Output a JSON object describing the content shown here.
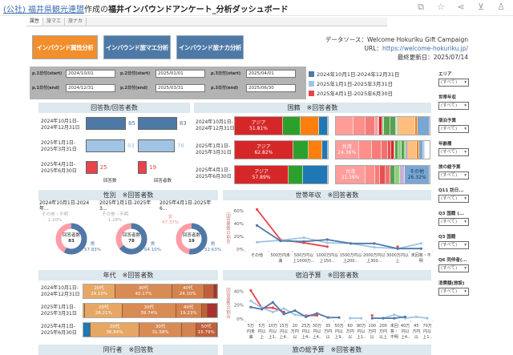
{
  "header": {
    "org_link": "(公社) 福井県観光連盟",
    "made_by": "作成の",
    "title": "福井インバウンドアンケート_分析ダッシュボード",
    "icons": [
      "copy-icon",
      "star-icon",
      "share-icon",
      "download-icon",
      "account-icon"
    ]
  },
  "tabs": [
    {
      "label": "属性"
    },
    {
      "label": "旅マエ"
    },
    {
      "label": "旅ナカ"
    }
  ],
  "nav": {
    "attr": "インバウンド属性分析",
    "before": "インバウンド旅マエ分析",
    "during": "インバウンド旅ナカ分析",
    "accent": "#f28e2b",
    "blue": "#4e79a7"
  },
  "source": {
    "line1": "データソース：Welcome Hokuriku Gift Campaign",
    "url_label": "URL：",
    "url": "https://welcome-hokuriku.jp/",
    "updated": "最終更新日：2025/07/14"
  },
  "dates": {
    "p1s_label": "p.1日付(start)",
    "p1s": "2024/10/01",
    "p2s_label": "p.2日付(start)",
    "p2s": "2025/01/01",
    "p3s_label": "p.3日付(start)",
    "p3s": "2025/04/01",
    "p1e_label": "p.1日付(end)",
    "p1e": "2024/12/31",
    "p2e_label": "p.2日付(end)",
    "p2e": "2025/03/31",
    "p3e_label": "p.3日付(end)",
    "p3e": "2025/06/30"
  },
  "legend": [
    {
      "label": "2024年10月1日-2024年12月31日",
      "color": "#4e79a7"
    },
    {
      "label": "2025年1月1日-2025年3月31日",
      "color": "#a0c4e4"
    },
    {
      "label": "2025年4月1日-2025年6月30日",
      "color": "#e8444a"
    }
  ],
  "filters": [
    {
      "label": "エリア",
      "value": "(すべて)"
    },
    {
      "label": "世帯年収",
      "value": "(すべて)"
    },
    {
      "label": "宿泊予算",
      "value": "(すべて)"
    },
    {
      "label": "年齢層",
      "value": "(すべて)"
    },
    {
      "label": "旅の総予算",
      "value": "(すべて)"
    },
    {
      "label": "Q11 訪日...",
      "value": "(すべて)"
    },
    {
      "label": "Q3 国籍 (...",
      "value": "(すべて)"
    },
    {
      "label": "Q3 国籍",
      "value": "(すべて)"
    },
    {
      "label": "Q6 同伴者(...",
      "value": "(すべて)"
    },
    {
      "label": "消費額(旅設)",
      "value": "(すべて)"
    }
  ],
  "periods": [
    {
      "l1": "2024年10月1日-",
      "l2": "2024年12月31日"
    },
    {
      "l1": "2025年1月1日-",
      "l2": "2025年3月31日"
    },
    {
      "l1": "2025年4月1日-",
      "l2": "2025年6月30日"
    }
  ],
  "counts": {
    "title": "回答数/回答者数",
    "col1": "回答数",
    "col2": "回答者数",
    "responses": [
      85,
      83,
      25
    ],
    "respondents": [
      83,
      78,
      19
    ],
    "max": 85
  },
  "nationality": {
    "title": "国籍　※回答者数",
    "main": [
      [
        {
          "label": "アジア",
          "pct": "51.81%",
          "w": 51.81,
          "c": "#d62728"
        },
        {
          "w": 19.28,
          "c": "#2ca02c"
        },
        {
          "w": 19.28,
          "c": "#ff7f0e"
        },
        {
          "w": 9.63,
          "c": "#1f77b4"
        }
      ],
      [
        {
          "label": "アジア",
          "pct": "62.82%",
          "w": 62.82,
          "c": "#d62728"
        },
        {
          "w": 16.67,
          "c": "#2ca02c"
        },
        {
          "w": 14.1,
          "c": "#ff7f0e"
        },
        {
          "w": 6.41,
          "c": "#1f77b4"
        }
      ],
      [
        {
          "label": "アジア",
          "pct": "57.89%",
          "w": 57.89,
          "c": "#d62728"
        },
        {
          "w": 15.79,
          "c": "#2ca02c"
        },
        {
          "w": 26.32,
          "c": "#1f77b4"
        }
      ]
    ],
    "detail": [
      [
        {
          "w": 19,
          "c": "#ff9d9a"
        },
        {
          "w": 13,
          "c": "#ff8f8a"
        },
        {
          "w": 10,
          "c": "#f77b78"
        },
        {
          "w": 3,
          "c": "#f0a0a0"
        },
        {
          "w": 1,
          "c": "#e85050"
        },
        {
          "w": 4,
          "c": "#d62728"
        },
        {
          "w": 1,
          "c": "#8fd18a"
        },
        {
          "w": 7,
          "c": "#59a14f"
        },
        {
          "w": 6,
          "c": "#59a14f"
        },
        {
          "w": 1,
          "c": "#8cd17d"
        },
        {
          "w": 1,
          "c": "#b07aa1"
        },
        {
          "w": 1,
          "c": "#2ca02c"
        },
        {
          "w": 18,
          "c": "#ffbe7d"
        },
        {
          "w": 2,
          "c": "#ff7f0e"
        },
        {
          "w": 13,
          "c": "#79a6d2"
        }
      ],
      [
        {
          "label": "台湾",
          "pct": "24.36%",
          "w": 24.36,
          "c": "#ff9d9a"
        },
        {
          "w": 14,
          "c": "#ff8f8a"
        },
        {
          "w": 10,
          "c": "#f77b78"
        },
        {
          "w": 7,
          "c": "#f07070"
        },
        {
          "w": 4,
          "c": "#e85050"
        },
        {
          "w": 3,
          "c": "#d62728"
        },
        {
          "w": 1,
          "c": "#8cd17d"
        },
        {
          "w": 3,
          "c": "#59a14f"
        },
        {
          "w": 4,
          "c": "#8cd17d"
        },
        {
          "w": 3,
          "c": "#59a14f"
        },
        {
          "w": 2,
          "c": "#8cd17d"
        },
        {
          "w": 2,
          "c": "#b07aa1"
        },
        {
          "w": 9,
          "c": "#ffbe7d"
        },
        {
          "w": 3,
          "c": "#ff7f0e"
        },
        {
          "w": 4,
          "c": "#79a6d2"
        },
        {
          "w": 2,
          "c": "#a0c4e4"
        }
      ],
      [
        {
          "label": "台湾",
          "pct": "31.58%",
          "w": 31.58,
          "c": "#ff9d9a"
        },
        {
          "w": 10.5,
          "c": "#ff8f8a"
        },
        {
          "w": 5.3,
          "c": "#f77b78"
        },
        {
          "w": 5.3,
          "c": "#e85050"
        },
        {
          "w": 5.3,
          "c": "#f07070"
        },
        {
          "w": 5.3,
          "c": "#59a14f"
        },
        {
          "w": 5.3,
          "c": "#8cd17d"
        },
        {
          "w": 5.3,
          "c": "#c7b0d5"
        },
        {
          "label": "その他",
          "pct": "26.32%",
          "w": 26.32,
          "c": "#79a6d2",
          "dark": true
        }
      ]
    ]
  },
  "gender": {
    "title": "性別　※回答者数",
    "center_label": "回答者数",
    "charts": [
      {
        "title": "2024年10月1日-2024年...",
        "total": "83",
        "male": 57.83,
        "male_label": "男",
        "male_pct": "57.83%",
        "other": 1.2,
        "other_label": "その他・不明",
        "other_pct": "1.20%"
      },
      {
        "title": "2025年1月1日-2025年3...",
        "total": "78",
        "male": 64.1,
        "male_label": "男",
        "male_pct": "64.10%",
        "other": 1.28,
        "other_label": "その他・不明",
        "other_pct": "1.28%"
      },
      {
        "title": "2025年4月1日-2025年6...",
        "total": "19",
        "male": 52.63,
        "male_label": "男",
        "male_pct": "52.63%",
        "female_label": "女",
        "female_pct": "47.37%",
        "other": 0
      }
    ]
  },
  "income": {
    "title": "世帯年収　※回答者数",
    "ylabel": "回答者数の割合",
    "yticks": [
      "0%",
      "20%",
      "40%",
      "60%"
    ],
    "categories": [
      "その他",
      "500万円未満",
      "500万円以上1000万...",
      "1000万円以上150...",
      "1500万円以上200...",
      "2000万円以上300...",
      "3000万円以上",
      "未回答・不明"
    ],
    "cat_lines": [
      [
        "その他"
      ],
      [
        "500万円未",
        "満"
      ],
      [
        "500万円以",
        "上1000万.."
      ],
      [
        "1000万円",
        "以上150.."
      ],
      [
        "1500万円",
        "以上200.."
      ],
      [
        "2000万円",
        "以上300.."
      ],
      [
        "3000万円",
        "以上"
      ],
      [
        "未回答・",
        "不明"
      ]
    ]
  },
  "accommodation": {
    "title": "宿泊予算　※回答者数",
    "ylabel": "回答者数の割合",
    "yticks": [
      "0%",
      "20%",
      "40%"
    ],
    "cat_lines": [
      [
        "5万",
        "円未",
        "満"
      ],
      [
        "5万",
        "円以",
        "上"
      ],
      [
        "10万",
        "円以",
        "上1.."
      ],
      [
        "15万",
        "円以",
        "上4.."
      ],
      [
        "20",
        "万円",
        "以"
      ],
      [
        "25万",
        "円以",
        "上4.."
      ],
      [
        "30万",
        "円以",
        "上4.."
      ],
      [
        "35",
        "万円",
        "以"
      ],
      [
        "50万",
        "円以",
        "上9.."
      ],
      [
        "60",
        "万円",
        "以"
      ],
      [
        "90万",
        "円以",
        "上1.."
      ],
      [
        "100",
        "万円",
        "以"
      ],
      [
        "200",
        "万円",
        "以上"
      ],
      [
        "未回",
        "答・",
        "不明"
      ],
      [
        "40万",
        "円以",
        "上4.."
      ],
      [
        "45",
        "万円",
        "以"
      ],
      [
        "70万",
        "円以",
        "上1.."
      ]
    ]
  },
  "age": {
    "title": "年代　※回答者数",
    "rows": [
      [
        {
          "label": "20代",
          "pct": "24.10%",
          "w": 24.1,
          "c": "#e6a765"
        },
        {
          "label": "30代",
          "pct": "42.17%",
          "w": 42.17,
          "c": "#d98b55"
        },
        {
          "label": "40代",
          "pct": "24.10%",
          "w": 24.1,
          "c": "#d4834f"
        },
        {
          "w": 7.2,
          "c": "#c0603a"
        },
        {
          "w": 2.4,
          "c": "#a83232"
        }
      ],
      [
        {
          "w": 1.3,
          "c": "#e6a765"
        },
        {
          "label": "20代",
          "pct": "28.21%",
          "w": 28.21,
          "c": "#e6a765"
        },
        {
          "label": "30代",
          "pct": "39.74%",
          "w": 39.74,
          "c": "#d98b55"
        },
        {
          "label": "40代",
          "pct": "19.23%",
          "w": 19.23,
          "c": "#d4834f"
        },
        {
          "w": 4.5,
          "c": "#c0603a"
        },
        {
          "w": 7.1,
          "c": "#a83232"
        }
      ],
      [
        {
          "w": 5.26,
          "c": "#1f77b4"
        },
        {
          "label": "20代",
          "pct": "36.84%",
          "w": 36.84,
          "c": "#e6a765"
        },
        {
          "label": "30代",
          "pct": "31.58%",
          "w": 31.58,
          "c": "#d98b55"
        },
        {
          "w": 10.53,
          "c": "#d4834f"
        },
        {
          "label": "50代",
          "pct": "15.79%",
          "w": 15.79,
          "c": "#c0603a"
        }
      ]
    ]
  },
  "bottom": {
    "companion": "同行者　※回答数",
    "budget": "旅の総予算　※回答者数"
  },
  "chart_data": [
    {
      "type": "line",
      "title": "世帯年収　※回答者数",
      "ylabel": "回答者数の割合",
      "ylim": [
        0,
        65
      ],
      "x": [
        "その他",
        "500万円未満",
        "500万円以上1000万...",
        "1000万円以上150...",
        "1500万円以上200...",
        "2000万円以上300...",
        "3000万円以上",
        "未回答・不明"
      ],
      "series": [
        {
          "name": "2024年10月1日-2024年12月31日",
          "color": "#4e79a7",
          "values": [
            37,
            13,
            12,
            15,
            9,
            9,
            1,
            1
          ]
        },
        {
          "name": "2025年1月1日-2025年3月31日",
          "color": "#a0c4e4",
          "values": [
            11,
            14,
            18,
            10,
            9,
            3,
            1,
            9
          ]
        },
        {
          "name": "2025年4月1日-2025年6月30日",
          "color": "#e8444a",
          "values": [
            62,
            15,
            10,
            4,
            null,
            null,
            4,
            null
          ]
        }
      ]
    },
    {
      "type": "line",
      "title": "宿泊予算　※回答者数",
      "ylabel": "回答者数の割合",
      "ylim": [
        0,
        45
      ],
      "x": [
        "5万円未満",
        "5万円以上",
        "10万円以上1..",
        "15万円以上4..",
        "20万円以",
        "25万円以上4..",
        "30万円以上4..",
        "35万円以",
        "50万円以上9..",
        "60万円以",
        "90万円以上1..",
        "100万円以",
        "200万円以上",
        "未回答・不明",
        "40万円以上4..",
        "45万円以",
        "70万円以上1.."
      ],
      "series": [
        {
          "name": "2024年10月1日-2024年12月31日",
          "color": "#4e79a7",
          "values": [
            17,
            14,
            24,
            7,
            12,
            3,
            8,
            2,
            2,
            null,
            null,
            1,
            1,
            1,
            3,
            null,
            null
          ]
        },
        {
          "name": "2025年1月1日-2025年3月31日",
          "color": "#a0c4e4",
          "values": [
            26,
            16,
            10,
            15,
            6,
            4,
            null,
            null,
            null,
            1,
            1,
            null,
            1,
            6,
            1,
            3,
            1
          ]
        },
        {
          "name": "2025年4月1日-2025年6月30日",
          "color": "#e8444a",
          "values": [
            41,
            16,
            16,
            10,
            null,
            5,
            5,
            null,
            null,
            null,
            null,
            5,
            null,
            null,
            null,
            null,
            null
          ]
        }
      ]
    }
  ]
}
